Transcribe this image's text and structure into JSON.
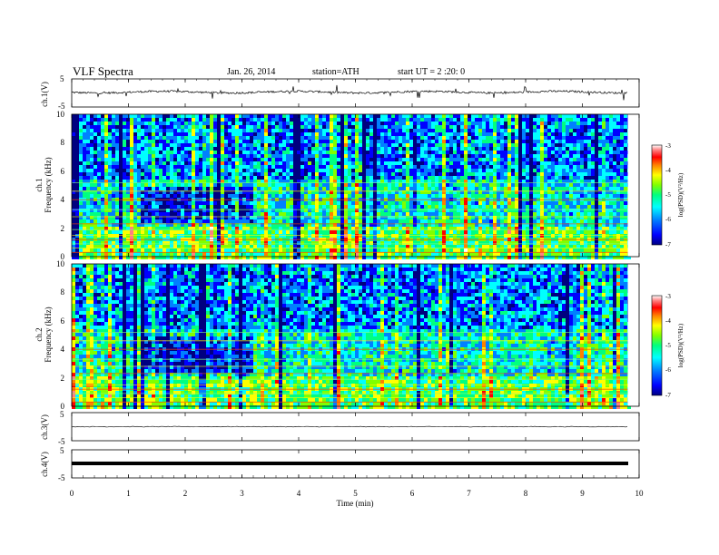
{
  "header": {
    "title": "VLF Spectra",
    "date": "Jan. 26, 2014",
    "station": "station=ATH",
    "start_ut": "start UT = 2 :20: 0"
  },
  "x_axis": {
    "label": "Time (min)",
    "ticks": [
      "0",
      "1",
      "2",
      "3",
      "4",
      "5",
      "6",
      "7",
      "8",
      "9",
      "10"
    ]
  },
  "panels": {
    "ch1_waveform": {
      "ylabel": "ch.1(V)",
      "yticks": [
        "5",
        "-5"
      ]
    },
    "ch1_spectrogram": {
      "ylabel_channel": "ch.1",
      "ylabel": "Frequency (kHz)",
      "yticks": [
        "10",
        "8",
        "6",
        "4",
        "2",
        "0"
      ]
    },
    "ch2_spectrogram": {
      "ylabel_channel": "ch.2",
      "ylabel": "Frequency (kHz)",
      "yticks": [
        "10",
        "8",
        "6",
        "4",
        "2",
        "0"
      ]
    },
    "ch3_waveform": {
      "ylabel": "ch.3(V)",
      "yticks": [
        "5",
        "-5"
      ]
    },
    "ch4_waveform": {
      "ylabel": "ch.4(V)",
      "yticks": [
        "5",
        "-5"
      ]
    }
  },
  "colorbar": {
    "label": "log(PSD)(V²/Hz)",
    "ticks": [
      "-3",
      "-4",
      "-5",
      "-6",
      "-7"
    ],
    "colors": [
      "#000080",
      "#0000ff",
      "#0080ff",
      "#00ffff",
      "#00ff80",
      "#80ff00",
      "#ffff00",
      "#ff8000",
      "#ff0000",
      "#ff8080",
      "#ffffff"
    ]
  },
  "chart_data": [
    {
      "type": "line",
      "name": "ch1 waveform",
      "x_range": [
        0,
        10
      ],
      "ylim": [
        -5,
        5
      ],
      "ylabel": "ch.1(V)",
      "baseline_value": 0,
      "data_end_time": 9.8
    },
    {
      "type": "heatmap",
      "name": "ch1 spectrogram",
      "x_range": [
        0,
        10
      ],
      "ylim": [
        0,
        10
      ],
      "ylabel": "Frequency (kHz)",
      "xlabel": "Time (min)",
      "value_scale": [
        -7,
        -3
      ],
      "data_end_time": 9.8
    },
    {
      "type": "heatmap",
      "name": "ch2 spectrogram",
      "x_range": [
        0,
        10
      ],
      "ylim": [
        0,
        10
      ],
      "ylabel": "Frequency (kHz)",
      "xlabel": "Time (min)",
      "value_scale": [
        -7,
        -3
      ],
      "data_end_time": 9.8
    },
    {
      "type": "line",
      "name": "ch3 waveform",
      "x_range": [
        0,
        10
      ],
      "ylim": [
        -5,
        5
      ],
      "ylabel": "ch.3(V)",
      "baseline_value": 0,
      "data_end_time": 9.8
    },
    {
      "type": "line",
      "name": "ch4 waveform",
      "x_range": [
        0,
        10
      ],
      "ylim": [
        -5,
        5
      ],
      "ylabel": "ch.4(V)",
      "baseline_value": 0,
      "data_end_time": 9.8
    }
  ]
}
